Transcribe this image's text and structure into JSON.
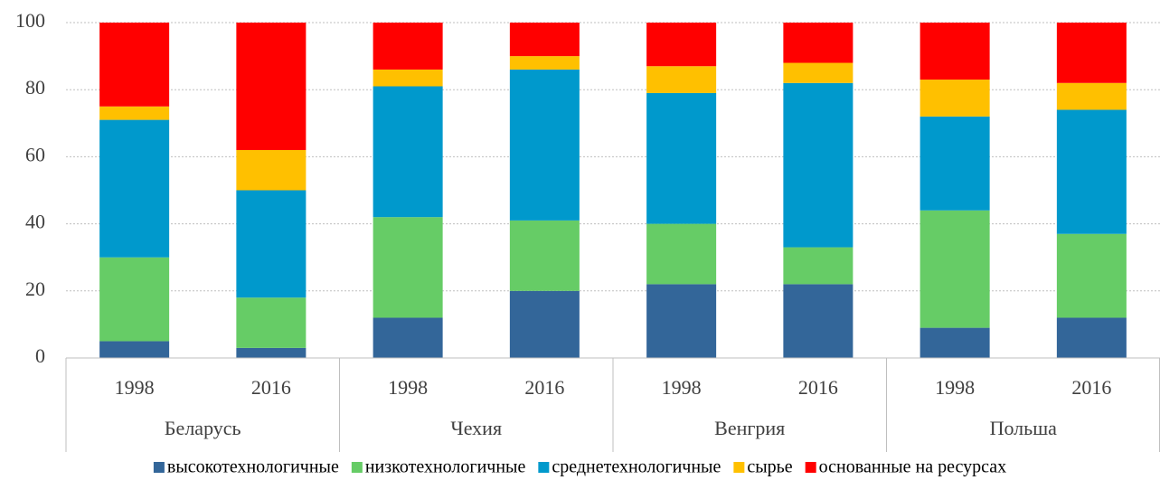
{
  "chart_data": {
    "type": "stacked_bar",
    "categories": [
      "1998",
      "2016",
      "1998",
      "2016",
      "1998",
      "2016",
      "1998",
      "2016"
    ],
    "groups": [
      "Беларусь",
      "Чехия",
      "Венгрия",
      "Польша"
    ],
    "series": [
      {
        "name": "высокотехнологичные",
        "color": "#336699",
        "values": [
          5,
          3,
          12,
          20,
          22,
          22,
          9,
          12
        ]
      },
      {
        "name": "низкотехнологичные",
        "color": "#66cc66",
        "values": [
          25,
          15,
          30,
          21,
          18,
          11,
          35,
          25
        ]
      },
      {
        "name": "среднетехнологичные",
        "color": "#0099cc",
        "values": [
          41,
          32,
          39,
          45,
          39,
          49,
          28,
          37
        ]
      },
      {
        "name": "сырье",
        "color": "#ffc000",
        "values": [
          4,
          12,
          5,
          4,
          8,
          6,
          11,
          8
        ]
      },
      {
        "name": "основанные на ресурсах",
        "color": "#ff0000",
        "values": [
          25,
          38,
          14,
          10,
          13,
          12,
          17,
          18
        ]
      }
    ],
    "ylim": [
      0,
      100
    ],
    "yticks": [
      0,
      20,
      40,
      60,
      80,
      100
    ],
    "grid": true,
    "legend": "bottom"
  }
}
